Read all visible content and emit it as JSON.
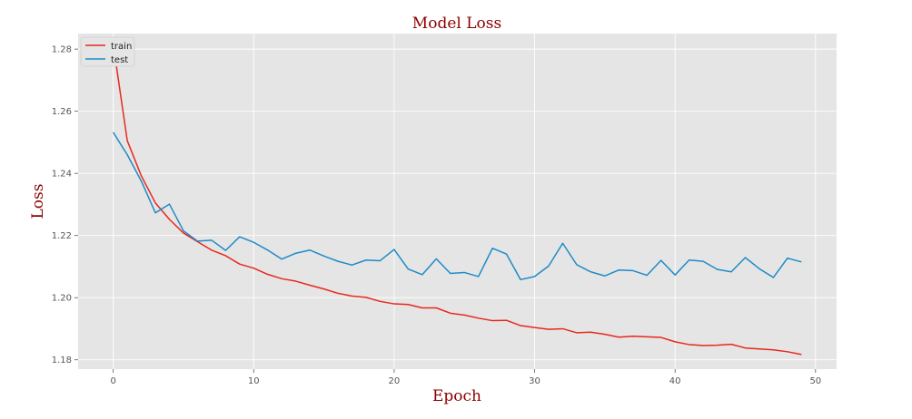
{
  "chart_data": {
    "type": "line",
    "title": "Model Loss",
    "xlabel": "Epoch",
    "ylabel": "Loss",
    "xlim": [
      -2.5,
      51.5
    ],
    "ylim": [
      1.177,
      1.285
    ],
    "xticks": [
      0,
      10,
      20,
      30,
      40,
      50
    ],
    "yticks": [
      1.18,
      1.2,
      1.22,
      1.24,
      1.26,
      1.28
    ],
    "ytick_labels": [
      "1.18",
      "1.20",
      "1.22",
      "1.24",
      "1.26",
      "1.28"
    ],
    "grid": true,
    "legend_position": "top-left",
    "x": [
      0,
      1,
      2,
      3,
      4,
      5,
      6,
      7,
      8,
      9,
      10,
      11,
      12,
      13,
      14,
      15,
      16,
      17,
      18,
      19,
      20,
      21,
      22,
      23,
      24,
      25,
      26,
      27,
      28,
      29,
      30,
      31,
      32,
      33,
      34,
      35,
      36,
      37,
      38,
      39,
      40,
      41,
      42,
      43,
      44,
      45,
      46,
      47,
      48,
      49
    ],
    "series": [
      {
        "name": "train",
        "color": "#e8281e",
        "values": [
          1.2815,
          1.2505,
          1.2392,
          1.2305,
          1.2252,
          1.2208,
          1.218,
          1.2153,
          1.2135,
          1.2108,
          1.2095,
          1.2075,
          1.2061,
          1.2053,
          1.204,
          1.2028,
          1.2014,
          1.2005,
          1.2001,
          1.1988,
          1.198,
          1.1978,
          1.1967,
          1.1967,
          1.195,
          1.1944,
          1.1934,
          1.1926,
          1.1927,
          1.191,
          1.1904,
          1.1898,
          1.19,
          1.1887,
          1.1889,
          1.1882,
          1.1873,
          1.1876,
          1.1874,
          1.1872,
          1.1858,
          1.1849,
          1.1846,
          1.1847,
          1.185,
          1.1838,
          1.1835,
          1.1832,
          1.1826,
          1.1817
        ]
      },
      {
        "name": "test",
        "color": "#1f8bc7",
        "values": [
          1.2532,
          1.246,
          1.2375,
          1.2273,
          1.2301,
          1.2215,
          1.2182,
          1.2185,
          1.2152,
          1.2196,
          1.2178,
          1.2153,
          1.2124,
          1.2143,
          1.2153,
          1.2134,
          1.2117,
          1.2105,
          1.2121,
          1.2119,
          1.2155,
          1.2092,
          1.2074,
          1.2125,
          1.2078,
          1.2081,
          1.2068,
          1.2159,
          1.214,
          1.2058,
          1.2068,
          1.2102,
          1.2175,
          1.2106,
          1.2083,
          1.207,
          1.2089,
          1.2087,
          1.2072,
          1.212,
          1.2073,
          1.2121,
          1.2117,
          1.2091,
          1.2083,
          1.2129,
          1.2093,
          1.2065,
          1.2127,
          1.2115
        ]
      }
    ]
  },
  "colors": {
    "plot_background": "#e5e5e5",
    "grid": "#ffffff",
    "title": "#8b0000"
  }
}
